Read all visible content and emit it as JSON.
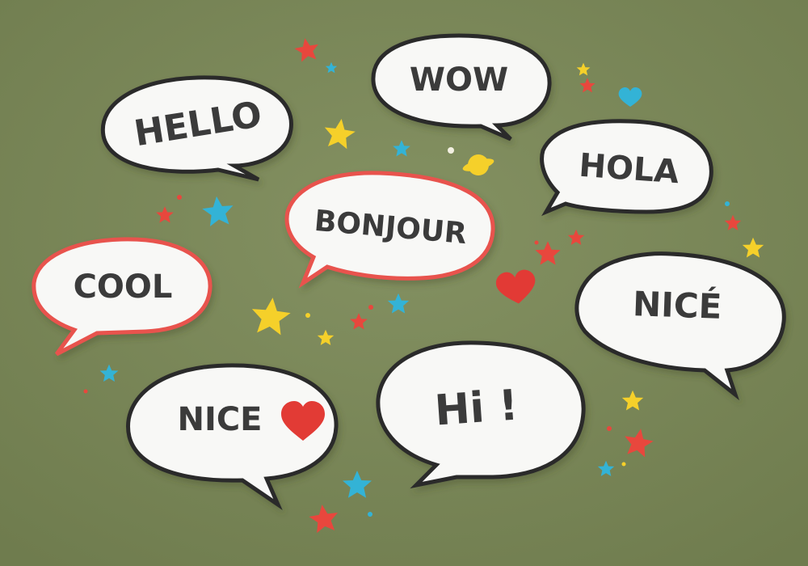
{
  "background_color": "#7d8a5a",
  "colors": {
    "bubble_fill": "#f8f8f6",
    "outline_black": "#2b2b2b",
    "outline_red": "#e8534e",
    "star_red": "#e8473d",
    "star_yellow": "#f5d02a",
    "star_cyan": "#33b3d6",
    "heart_red": "#e23a35",
    "text": "#3a3a3a"
  },
  "bubbles": {
    "hello": {
      "text": "HELLO",
      "outline": "black"
    },
    "wow": {
      "text": "WOW",
      "outline": "black"
    },
    "hola": {
      "text": "HOLA",
      "outline": "black"
    },
    "bonjour": {
      "text": "BONJOUR",
      "outline": "red"
    },
    "cool": {
      "text": "COOL",
      "outline": "red"
    },
    "nice_accent": {
      "text": "NICÉ",
      "outline": "black"
    },
    "nice_heart": {
      "text": "NICE",
      "outline": "black"
    },
    "hi": {
      "text": "Hi !",
      "outline": "black"
    }
  },
  "decorations": {
    "stars": [
      "red",
      "yellow",
      "cyan"
    ],
    "hearts": [
      "red",
      "cyan",
      "yellow"
    ]
  }
}
